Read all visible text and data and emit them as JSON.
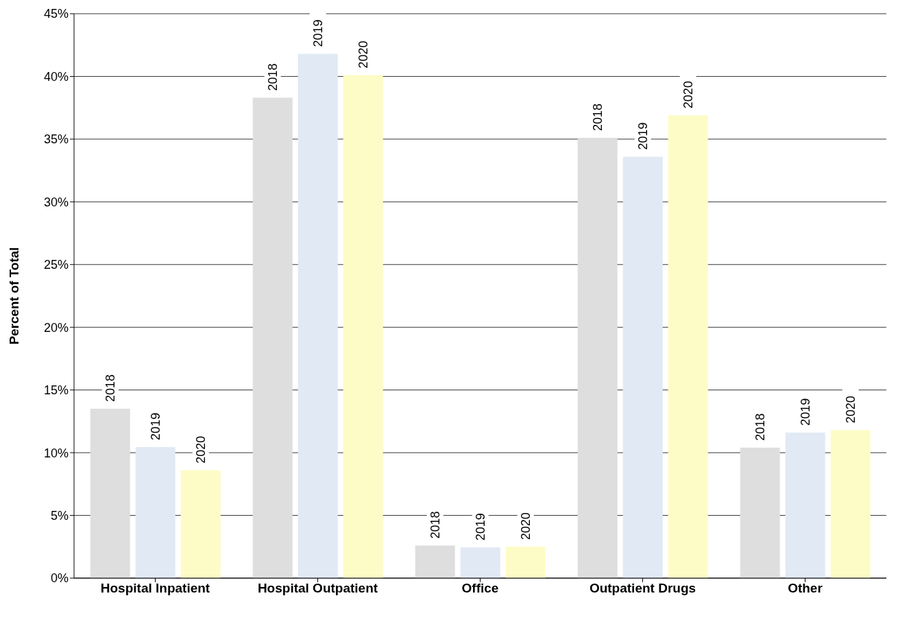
{
  "chart_data": {
    "type": "bar",
    "ylabel": "Percent of Total",
    "categories": [
      "Hospital Inpatient",
      "Hospital Outpatient",
      "Office",
      "Outpatient Drugs",
      "Other"
    ],
    "series": [
      {
        "name": "2018",
        "color": "#dedede",
        "values": [
          13.5,
          38.3,
          2.6,
          35.1,
          10.4
        ]
      },
      {
        "name": "2019",
        "color": "#e1e9f4",
        "values": [
          10.45,
          41.8,
          2.45,
          33.6,
          11.6
        ]
      },
      {
        "name": "2020",
        "color": "#fdfcc6",
        "values": [
          8.6,
          40.1,
          2.5,
          36.9,
          11.8
        ]
      }
    ],
    "ylim": [
      0,
      45
    ],
    "yticks": [
      {
        "value": 0,
        "label": "0%"
      },
      {
        "value": 5,
        "label": "5%"
      },
      {
        "value": 10,
        "label": "10%"
      },
      {
        "value": 15,
        "label": "15%"
      },
      {
        "value": 20,
        "label": "20%"
      },
      {
        "value": 25,
        "label": "25%"
      },
      {
        "value": 30,
        "label": "30%"
      },
      {
        "value": 35,
        "label": "35%"
      },
      {
        "value": 40,
        "label": "40%"
      },
      {
        "value": 45,
        "label": "45%"
      }
    ],
    "grid": "y",
    "legend": false
  }
}
